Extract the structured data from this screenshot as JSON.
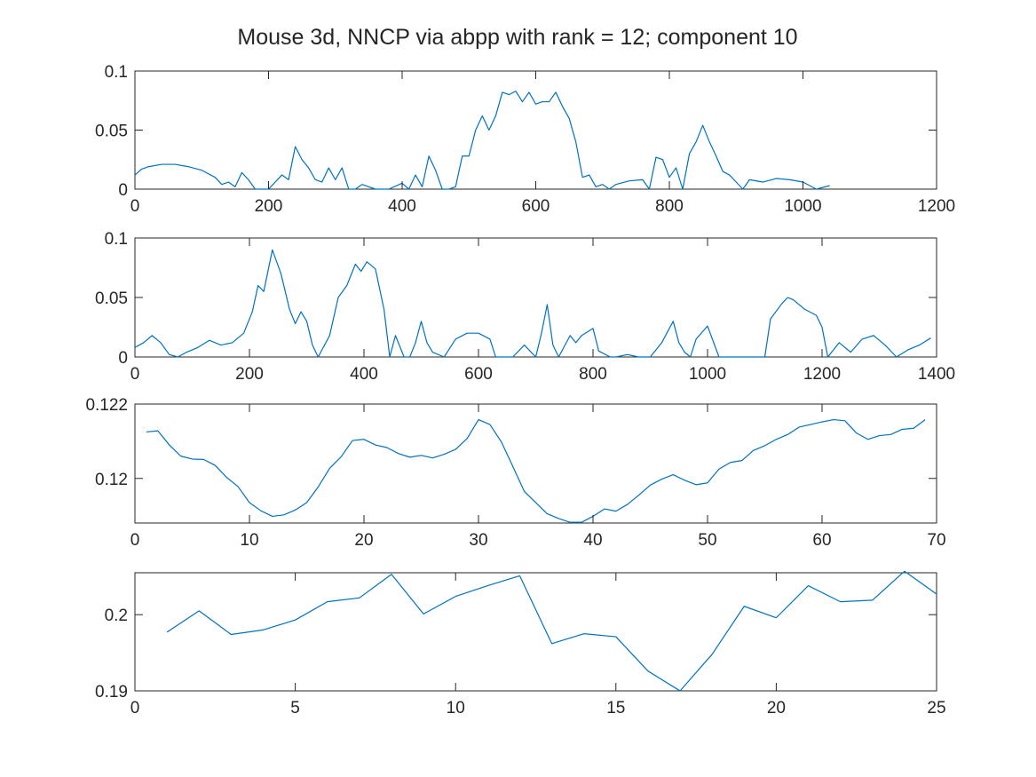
{
  "title": "Mouse 3d, NNCP via abpp with rank = 12; component 10",
  "colors": {
    "line": "#0072BD",
    "axis": "#262626",
    "background": "#ffffff"
  },
  "chart_data": [
    {
      "type": "line",
      "xlim": [
        0,
        1200
      ],
      "ylim": [
        0,
        0.1
      ],
      "xticks": [
        0,
        200,
        400,
        600,
        800,
        1000,
        1200
      ],
      "xtick_labels": [
        "0",
        "200",
        "400",
        "600",
        "800",
        "1000",
        "1200"
      ],
      "yticks": [
        0,
        0.05,
        0.1
      ],
      "ytick_labels": [
        "0",
        "0.05",
        "0.1"
      ],
      "grid": false,
      "series": [
        {
          "x": [
            0,
            10,
            20,
            40,
            60,
            80,
            100,
            120,
            130,
            140,
            150,
            160,
            170,
            180,
            200,
            220,
            230,
            240,
            250,
            260,
            270,
            280,
            290,
            300,
            310,
            320,
            330,
            340,
            360,
            380,
            400,
            410,
            420,
            430,
            440,
            450,
            460,
            470,
            480,
            490,
            500,
            510,
            520,
            530,
            540,
            550,
            560,
            570,
            580,
            590,
            600,
            610,
            620,
            630,
            640,
            650,
            660,
            670,
            680,
            690,
            700,
            710,
            720,
            740,
            760,
            770,
            780,
            790,
            800,
            810,
            820,
            830,
            840,
            850,
            860,
            870,
            880,
            890,
            900,
            910,
            920,
            940,
            960,
            980,
            1000,
            1020,
            1040
          ],
          "values": [
            0.012,
            0.017,
            0.019,
            0.021,
            0.021,
            0.019,
            0.016,
            0.01,
            0.004,
            0.006,
            0.002,
            0.014,
            0.008,
            0.0,
            0.0,
            0.012,
            0.008,
            0.036,
            0.025,
            0.018,
            0.008,
            0.006,
            0.018,
            0.008,
            0.018,
            0.0,
            0.0,
            0.004,
            0.0,
            0.0,
            0.005,
            0.0,
            0.012,
            0.002,
            0.028,
            0.016,
            0.0,
            0.0,
            0.002,
            0.028,
            0.028,
            0.05,
            0.062,
            0.05,
            0.062,
            0.082,
            0.08,
            0.083,
            0.074,
            0.082,
            0.072,
            0.074,
            0.074,
            0.082,
            0.07,
            0.06,
            0.04,
            0.01,
            0.012,
            0.002,
            0.004,
            0.0,
            0.004,
            0.007,
            0.008,
            0.0,
            0.027,
            0.025,
            0.01,
            0.018,
            0.0,
            0.03,
            0.04,
            0.054,
            0.04,
            0.028,
            0.015,
            0.012,
            0.006,
            0.0,
            0.008,
            0.006,
            0.009,
            0.008,
            0.006,
            0.0,
            0.003
          ]
        }
      ]
    },
    {
      "type": "line",
      "xlim": [
        0,
        1400
      ],
      "ylim": [
        0,
        0.1
      ],
      "xticks": [
        0,
        200,
        400,
        600,
        800,
        1000,
        1200,
        1400
      ],
      "xtick_labels": [
        "0",
        "200",
        "400",
        "600",
        "800",
        "1000",
        "1200",
        "1400"
      ],
      "yticks": [
        0,
        0.05,
        0.1
      ],
      "ytick_labels": [
        "0",
        "0.05",
        "0.1"
      ],
      "grid": false,
      "series": [
        {
          "x": [
            0,
            15,
            30,
            45,
            60,
            75,
            90,
            110,
            130,
            150,
            170,
            190,
            205,
            215,
            225,
            240,
            255,
            270,
            280,
            290,
            300,
            310,
            320,
            340,
            355,
            370,
            385,
            395,
            405,
            420,
            435,
            445,
            455,
            470,
            480,
            490,
            500,
            510,
            520,
            540,
            560,
            580,
            600,
            620,
            630,
            650,
            660,
            680,
            700,
            710,
            720,
            730,
            740,
            760,
            770,
            780,
            800,
            810,
            830,
            840,
            860,
            880,
            900,
            920,
            940,
            950,
            960,
            970,
            980,
            1000,
            1020,
            1040,
            1060,
            1080,
            1100,
            1110,
            1130,
            1140,
            1150,
            1170,
            1190,
            1200,
            1210,
            1230,
            1250,
            1270,
            1290,
            1310,
            1330,
            1350,
            1370,
            1390
          ],
          "values": [
            0.008,
            0.012,
            0.018,
            0.012,
            0.002,
            0.0,
            0.004,
            0.008,
            0.014,
            0.01,
            0.012,
            0.02,
            0.038,
            0.06,
            0.055,
            0.09,
            0.07,
            0.04,
            0.028,
            0.038,
            0.03,
            0.01,
            0.0,
            0.018,
            0.05,
            0.06,
            0.078,
            0.072,
            0.08,
            0.074,
            0.04,
            0.0,
            0.018,
            0.0,
            0.0,
            0.012,
            0.03,
            0.012,
            0.004,
            0.0,
            0.015,
            0.02,
            0.02,
            0.015,
            0.0,
            0.0,
            0.0,
            0.01,
            0.0,
            0.02,
            0.044,
            0.01,
            0.0,
            0.018,
            0.012,
            0.018,
            0.024,
            0.005,
            0.0,
            0.0,
            0.002,
            0.0,
            0.0,
            0.012,
            0.03,
            0.012,
            0.004,
            0.0,
            0.015,
            0.026,
            0.0,
            0.0,
            0.0,
            0.0,
            0.0,
            0.032,
            0.045,
            0.05,
            0.048,
            0.04,
            0.035,
            0.025,
            0.0,
            0.012,
            0.004,
            0.015,
            0.018,
            0.01,
            0.0,
            0.006,
            0.01,
            0.016
          ]
        }
      ]
    },
    {
      "type": "line",
      "xlim": [
        0,
        70
      ],
      "ylim": [
        0.1188,
        0.122
      ],
      "xticks": [
        0,
        10,
        20,
        30,
        40,
        50,
        60,
        70
      ],
      "xtick_labels": [
        "0",
        "10",
        "20",
        "30",
        "40",
        "50",
        "60",
        "70"
      ],
      "yticks": [
        0.12,
        0.122
      ],
      "ytick_labels": [
        "0.12",
        "0.122"
      ],
      "grid": false,
      "series": [
        {
          "x": [
            1,
            2,
            3,
            4,
            5,
            6,
            7,
            8,
            9,
            10,
            11,
            12,
            13,
            14,
            15,
            16,
            17,
            18,
            19,
            20,
            21,
            22,
            23,
            24,
            25,
            26,
            27,
            28,
            29,
            30,
            31,
            32,
            33,
            34,
            35,
            36,
            37,
            38,
            39,
            40,
            41,
            42,
            43,
            44,
            45,
            46,
            47,
            48,
            49,
            50,
            51,
            52,
            53,
            54,
            55,
            56,
            57,
            58,
            59,
            60,
            61,
            62,
            63,
            64,
            65,
            66,
            67,
            68,
            69
          ],
          "values": [
            0.12125,
            0.12128,
            0.1209,
            0.1206,
            0.12052,
            0.12051,
            0.12035,
            0.12003,
            0.11978,
            0.11935,
            0.11913,
            0.11898,
            0.11902,
            0.11915,
            0.11935,
            0.11977,
            0.12027,
            0.12058,
            0.12102,
            0.12105,
            0.1209,
            0.12083,
            0.12067,
            0.12057,
            0.12062,
            0.12055,
            0.12065,
            0.12078,
            0.12107,
            0.12158,
            0.12145,
            0.12098,
            0.12032,
            0.11965,
            0.11935,
            0.11905,
            0.11892,
            0.11882,
            0.11882,
            0.11898,
            0.11918,
            0.11912,
            0.1193,
            0.11955,
            0.11982,
            0.11998,
            0.1201,
            0.11995,
            0.11983,
            0.11988,
            0.12025,
            0.12043,
            0.12048,
            0.12075,
            0.12088,
            0.12105,
            0.12118,
            0.12138,
            0.12145,
            0.12152,
            0.12158,
            0.12155,
            0.12122,
            0.12105,
            0.12115,
            0.12118,
            0.12132,
            0.12135,
            0.12158
          ]
        }
      ]
    },
    {
      "type": "line",
      "xlim": [
        0,
        25
      ],
      "ylim": [
        0.19,
        0.2055
      ],
      "xticks": [
        0,
        5,
        10,
        15,
        20,
        25
      ],
      "xtick_labels": [
        "0",
        "5",
        "10",
        "15",
        "20",
        "25"
      ],
      "yticks": [
        0.19,
        0.2
      ],
      "ytick_labels": [
        "0.19",
        "0.2"
      ],
      "grid": false,
      "series": [
        {
          "x": [
            1,
            2,
            3,
            4,
            5,
            6,
            7,
            8,
            9,
            10,
            11,
            12,
            13,
            14,
            15,
            16,
            17,
            18,
            19,
            20,
            21,
            22,
            23,
            24,
            25
          ],
          "values": [
            0.1977,
            0.2005,
            0.1974,
            0.198,
            0.1993,
            0.2017,
            0.2022,
            0.2053,
            0.2001,
            0.2024,
            0.2038,
            0.2051,
            0.1962,
            0.1975,
            0.1971,
            0.1926,
            0.19,
            0.1948,
            0.2011,
            0.1996,
            0.2038,
            0.2017,
            0.2019,
            0.2057,
            0.2027
          ]
        }
      ]
    }
  ]
}
